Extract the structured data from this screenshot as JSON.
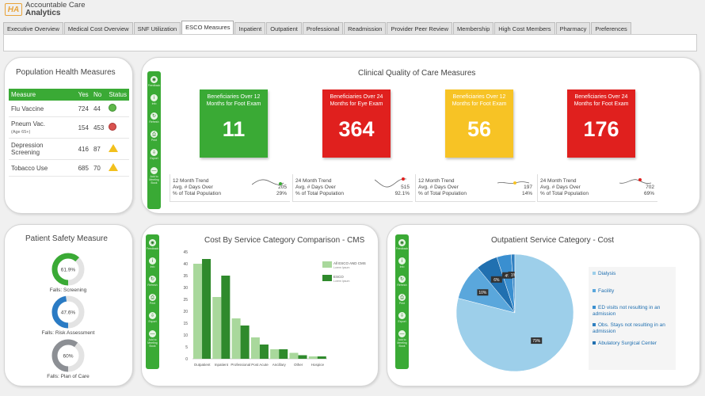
{
  "app": {
    "logo_mark": "HA",
    "title_line1": "Accountable Care",
    "title_line2": "Analytics"
  },
  "tabs": [
    "Executive Overview",
    "Medical Cost Overview",
    "SNF Utilization",
    "ESCO Measures",
    "Inpatient",
    "Outpatient",
    "Professional",
    "Readmission",
    "Provider Peer Review",
    "Membership",
    "High Cost Members",
    "Pharmacy",
    "Preferences"
  ],
  "active_tab_index": 3,
  "population_health": {
    "title": "Population Health Measures",
    "headers": [
      "Measure",
      "Yes",
      "No",
      "Status"
    ],
    "rows": [
      {
        "measure": "Flu Vaccine",
        "sub": "",
        "yes": "724",
        "no": "44",
        "status": "ok"
      },
      {
        "measure": "Pneum Vac.",
        "sub": "(Age 65+)",
        "yes": "154",
        "no": "453",
        "status": "bad"
      },
      {
        "measure": "Depression Screening",
        "sub": "",
        "yes": "416",
        "no": "87",
        "status": "warn"
      },
      {
        "measure": "Tobacco Use",
        "sub": "",
        "yes": "685",
        "no": "70",
        "status": "warn"
      }
    ]
  },
  "sidebar_items": [
    {
      "icon": "◉",
      "label": "Feedback"
    },
    {
      "icon": "i",
      "label": "Info"
    },
    {
      "icon": "↻",
      "label": "Refresh"
    },
    {
      "icon": "⎙",
      "label": "Print"
    },
    {
      "icon": "⇩",
      "label": "Export"
    },
    {
      "icon": "—",
      "label": "Add to Meeting Book"
    }
  ],
  "clinical": {
    "title": "Clinical Quality of Care Measures",
    "cards": [
      {
        "label": "Beneficiaries Over 12 Months for Foot Exam",
        "value": "11",
        "color": "#3aaa35",
        "trend_label": "12 Month Trend",
        "days_label": "Avg. # Days Over",
        "days": "205",
        "pct_label": "% of Total Population",
        "pct": "29%",
        "dot": "#3aaa35"
      },
      {
        "label": "Beneficiaries Over 24 Months for Eye Exam",
        "value": "364",
        "color": "#e0201e",
        "trend_label": "24 Month Trend",
        "days_label": "Avg. # Days Over",
        "days": "515",
        "pct_label": "% of Total Population",
        "pct": "92.1%",
        "dot": "#e0201e"
      },
      {
        "label": "Beneficiaries Over 12 Months for Foot Exam",
        "value": "56",
        "color": "#f7c325",
        "trend_label": "12 Month Trend",
        "days_label": "Avg. # Days Over",
        "days": "197",
        "pct_label": "% of Total Population",
        "pct": "14%",
        "dot": "#f7c325"
      },
      {
        "label": "Beneficiaries Over 24 Months for Foot Exam",
        "value": "176",
        "color": "#e0201e",
        "trend_label": "24 Month Trend",
        "days_label": "Avg. # Days Over",
        "days": "702",
        "pct_label": "% of Total Population",
        "pct": "69%",
        "dot": "#e0201e"
      }
    ]
  },
  "patient_safety": {
    "title": "Patient Safety Measure",
    "donuts": [
      {
        "value": "61.9%",
        "fraction": 0.619,
        "label": "Falls: Screening",
        "color": "#3aaa35"
      },
      {
        "value": "47.6%",
        "fraction": 0.476,
        "label": "Falls: Risk Assessment",
        "color": "#2a7bc4"
      },
      {
        "value": "60%",
        "fraction": 0.6,
        "label": "Falls: Plan of Care",
        "color": "#8c8f94"
      }
    ]
  },
  "chart_data": [
    {
      "type": "bar",
      "title": "Cost By Service Category Comparison - CMS",
      "categories": [
        "Outpatient",
        "Inpatient",
        "Professional",
        "Post Acute",
        "Ancillary",
        "Other",
        "Hospice"
      ],
      "series": [
        {
          "name": "All ESCO AND CMS",
          "color": "#a9d89c",
          "values": [
            40,
            26,
            17,
            9,
            4,
            2.5,
            1
          ]
        },
        {
          "name": "ESCO",
          "color": "#2f8a2c",
          "values": [
            42,
            35,
            14,
            6,
            4,
            1.5,
            1
          ]
        }
      ],
      "ylim": [
        0,
        45
      ],
      "yticks": [
        "0",
        "5",
        "10",
        "15",
        "20",
        "25",
        "30",
        "35",
        "40",
        "45"
      ],
      "legend_sub": "Lorem Ipsum"
    },
    {
      "type": "pie",
      "title": "Outpatient Service Category - Cost",
      "slices": [
        {
          "label": "Dialysis",
          "value": 79,
          "text": "79%",
          "color": "#9dcfea"
        },
        {
          "label": "Facility",
          "value": 10,
          "text": "10%",
          "color": "#5aa7dc"
        },
        {
          "label": "ED visits not resulting in an admission",
          "value": 4,
          "text": "4%",
          "color": "#3a8fd0"
        },
        {
          "label": "Obs. Stays not resulting in an admission",
          "value": 1,
          "text": "1%",
          "color": "#2f7fc0"
        },
        {
          "label": "Abulatory Surgical Center",
          "value": 6,
          "text": "6%",
          "color": "#2170b0"
        }
      ]
    }
  ]
}
